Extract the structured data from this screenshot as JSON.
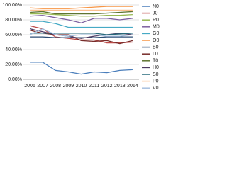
{
  "chart_data": {
    "type": "line",
    "x": [
      "2006",
      "2007",
      "2008",
      "2009",
      "2010",
      "2011",
      "2012",
      "2013",
      "2014"
    ],
    "ylim": [
      0,
      100
    ],
    "yticks": [
      {
        "value": 0,
        "label": "0.00%"
      },
      {
        "value": 20,
        "label": "20.00%"
      },
      {
        "value": 40,
        "label": "40.00%"
      },
      {
        "value": 60,
        "label": "60.00%"
      },
      {
        "value": 80,
        "label": "80.00%"
      },
      {
        "value": 100,
        "label": "100.00%"
      }
    ],
    "grid": true,
    "series": [
      {
        "name": "N0",
        "color": "#4a7ebb",
        "values": [
          23,
          23,
          12,
          10,
          7,
          10,
          9,
          12,
          13
        ]
      },
      {
        "name": "J0",
        "color": "#be4b48",
        "values": [
          72,
          68,
          57,
          55,
          53,
          53,
          49,
          49,
          50
        ]
      },
      {
        "name": "R0",
        "color": "#98b954",
        "values": [
          88,
          88,
          87,
          86,
          85,
          85,
          86,
          86,
          87
        ]
      },
      {
        "name": "M0",
        "color": "#7d60a0",
        "values": [
          85,
          86,
          83,
          80,
          76,
          82,
          82,
          80,
          82
        ]
      },
      {
        "name": "G0",
        "color": "#46aac5",
        "values": [
          78,
          78,
          75,
          70,
          70,
          70,
          70,
          70,
          70
        ]
      },
      {
        "name": "O0",
        "color": "#f79646",
        "values": [
          96,
          95,
          95,
          95,
          96,
          97,
          98,
          98,
          98
        ]
      },
      {
        "name": "B0",
        "color": "#2c4d75",
        "values": [
          57,
          57,
          56,
          56,
          56,
          56,
          57,
          57,
          57
        ]
      },
      {
        "name": "L0",
        "color": "#772c2a",
        "values": [
          66,
          62,
          60,
          60,
          52,
          51,
          52,
          48,
          52
        ]
      },
      {
        "name": "T0",
        "color": "#5f7530",
        "values": [
          90,
          91,
          88,
          88,
          88,
          88,
          89,
          90,
          91
        ]
      },
      {
        "name": "H0",
        "color": "#4d3b62",
        "values": [
          68,
          64,
          60,
          58,
          55,
          58,
          60,
          62,
          60
        ]
      },
      {
        "name": "S0",
        "color": "#276a7c",
        "values": [
          62,
          62,
          62,
          62,
          62,
          62,
          60,
          61,
          62
        ]
      },
      {
        "name": "P0",
        "color": "#fac090",
        "values": [
          93,
          93,
          93,
          93,
          93,
          93,
          93,
          93,
          93
        ]
      },
      {
        "name": "V0",
        "color": "#a7c0de",
        "values": [
          60,
          68,
          60,
          58,
          60,
          60,
          58,
          58,
          60
        ]
      }
    ]
  }
}
